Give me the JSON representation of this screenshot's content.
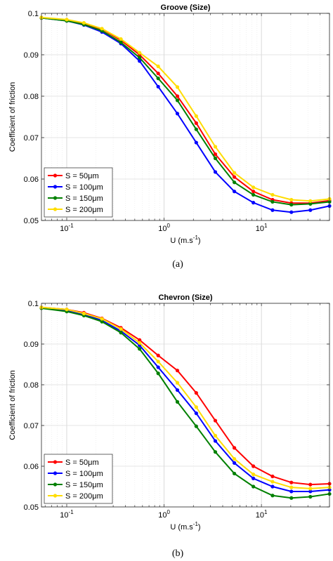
{
  "figure": {
    "caption_a": "(a)",
    "caption_b": "(b)"
  },
  "chart_data": [
    {
      "type": "line",
      "title": "Groove (Size)",
      "xlabel": "U (m.s",
      "xlabel_sup": "-1",
      "xlabel_end": ")",
      "ylabel": "Coefficient of friction",
      "xscale": "log",
      "xlim": [
        0.055,
        50
      ],
      "ylim": [
        0.05,
        0.1
      ],
      "xticks": [
        {
          "value": 0.1,
          "base": "10",
          "exp": "-1"
        },
        {
          "value": 1,
          "base": "10",
          "exp": "0"
        },
        {
          "value": 10,
          "base": "10",
          "exp": "1"
        }
      ],
      "yticks": [
        {
          "value": 0.05,
          "label": "0.05"
        },
        {
          "value": 0.06,
          "label": "0.06"
        },
        {
          "value": 0.07,
          "label": "0.07"
        },
        {
          "value": 0.08,
          "label": "0.08"
        },
        {
          "value": 0.09,
          "label": "0.09"
        },
        {
          "value": 0.1,
          "label": "0.1"
        }
      ],
      "grid": true,
      "legend_position": "bottom-left",
      "x": [
        0.055,
        0.1,
        0.15,
        0.23,
        0.36,
        0.56,
        0.87,
        1.37,
        2.14,
        3.36,
        5.27,
        8.26,
        13,
        20.3,
        31.8,
        50
      ],
      "series": [
        {
          "name": "S = 50μm",
          "color": "#ff0000",
          "values": [
            0.0989,
            0.0983,
            0.0975,
            0.0962,
            0.0935,
            0.09,
            0.0855,
            0.08,
            0.0735,
            0.066,
            0.0605,
            0.057,
            0.055,
            0.0542,
            0.0542,
            0.0548
          ]
        },
        {
          "name": "S = 100μm",
          "color": "#0000ff",
          "values": [
            0.0989,
            0.0982,
            0.0972,
            0.0955,
            0.0927,
            0.0885,
            0.0823,
            0.0758,
            0.0688,
            0.0617,
            0.057,
            0.0543,
            0.0525,
            0.052,
            0.0525,
            0.0535
          ]
        },
        {
          "name": "S = 150μm",
          "color": "#008000",
          "values": [
            0.0989,
            0.0982,
            0.0973,
            0.0958,
            0.093,
            0.0893,
            0.0843,
            0.079,
            0.072,
            0.065,
            0.0592,
            0.0562,
            0.0545,
            0.0538,
            0.054,
            0.0545
          ]
        },
        {
          "name": "S = 200μm",
          "color": "#ffdd00",
          "values": [
            0.099,
            0.0985,
            0.0977,
            0.0963,
            0.0938,
            0.0905,
            0.0872,
            0.0822,
            0.0752,
            0.0678,
            0.0615,
            0.058,
            0.0562,
            0.055,
            0.0547,
            0.0552
          ]
        }
      ]
    },
    {
      "type": "line",
      "title": "Chevron (Size)",
      "xlabel": "U (m.s",
      "xlabel_sup": "-1",
      "xlabel_end": ")",
      "ylabel": "Coefficient of friction",
      "xscale": "log",
      "xlim": [
        0.055,
        50
      ],
      "ylim": [
        0.05,
        0.1
      ],
      "xticks": [
        {
          "value": 0.1,
          "base": "10",
          "exp": "-1"
        },
        {
          "value": 1,
          "base": "10",
          "exp": "0"
        },
        {
          "value": 10,
          "base": "10",
          "exp": "1"
        }
      ],
      "yticks": [
        {
          "value": 0.05,
          "label": "0.05"
        },
        {
          "value": 0.06,
          "label": "0.06"
        },
        {
          "value": 0.07,
          "label": "0.07"
        },
        {
          "value": 0.08,
          "label": "0.08"
        },
        {
          "value": 0.09,
          "label": "0.09"
        },
        {
          "value": 0.1,
          "label": "0.1"
        }
      ],
      "grid": true,
      "legend_position": "bottom-left",
      "x": [
        0.055,
        0.1,
        0.15,
        0.23,
        0.36,
        0.56,
        0.87,
        1.37,
        2.14,
        3.36,
        5.27,
        8.26,
        13,
        20.3,
        31.8,
        50
      ],
      "series": [
        {
          "name": "S = 50μm",
          "color": "#ff0000",
          "values": [
            0.099,
            0.0985,
            0.0977,
            0.0963,
            0.094,
            0.091,
            0.0872,
            0.0835,
            0.078,
            0.0712,
            0.0645,
            0.06,
            0.0575,
            0.056,
            0.0555,
            0.0557
          ]
        },
        {
          "name": "S = 100μm",
          "color": "#0000ff",
          "values": [
            0.0989,
            0.0983,
            0.0973,
            0.0958,
            0.0932,
            0.0897,
            0.0843,
            0.0787,
            0.073,
            0.0662,
            0.0608,
            0.057,
            0.055,
            0.0538,
            0.0538,
            0.0542
          ]
        },
        {
          "name": "S = 150μm",
          "color": "#008000",
          "values": [
            0.0988,
            0.098,
            0.097,
            0.0955,
            0.0928,
            0.0888,
            0.0828,
            0.0758,
            0.0698,
            0.0635,
            0.0582,
            0.055,
            0.0528,
            0.0522,
            0.0525,
            0.0532
          ]
        },
        {
          "name": "S = 200μm",
          "color": "#ffdd00",
          "values": [
            0.099,
            0.0985,
            0.0975,
            0.0962,
            0.0937,
            0.0903,
            0.0857,
            0.0805,
            0.0745,
            0.0675,
            0.0618,
            0.058,
            0.0562,
            0.0548,
            0.0545,
            0.0548
          ]
        }
      ]
    }
  ]
}
